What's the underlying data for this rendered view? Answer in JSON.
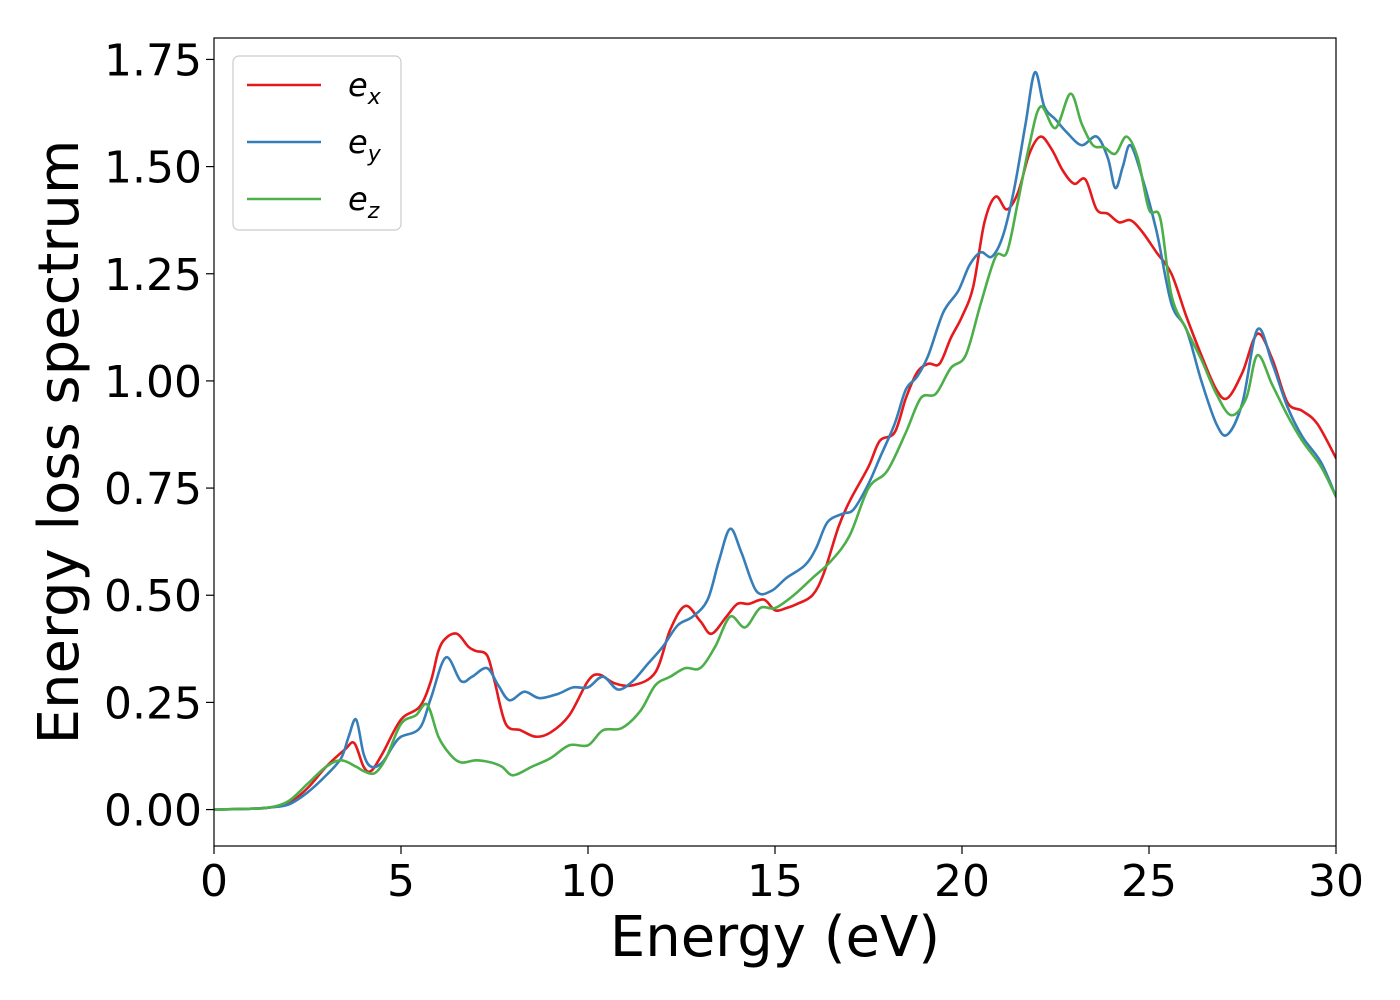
{
  "chart_data": {
    "type": "line",
    "xlabel": "Energy (eV)",
    "ylabel": "Energy loss spectrum",
    "xlim": [
      0,
      30
    ],
    "ylim": [
      -0.085,
      1.8
    ],
    "xticks": [
      0,
      5,
      10,
      15,
      20,
      25,
      30
    ],
    "xtick_labels": [
      "0",
      "5",
      "10",
      "15",
      "20",
      "25",
      "30"
    ],
    "yticks": [
      0.0,
      0.25,
      0.5,
      0.75,
      1.0,
      1.25,
      1.5,
      1.75
    ],
    "ytick_labels": [
      "0.00",
      "0.25",
      "0.50",
      "0.75",
      "1.00",
      "1.25",
      "1.50",
      "1.75"
    ],
    "grid": false,
    "legend_position": "top-left",
    "series": [
      {
        "name": "e_x",
        "legend_base": "e",
        "legend_sub": "x",
        "color": "#e41a1c",
        "points": [
          [
            0,
            0
          ],
          [
            1,
            0.002
          ],
          [
            1.5,
            0.005
          ],
          [
            2,
            0.015
          ],
          [
            2.5,
            0.05
          ],
          [
            3,
            0.1
          ],
          [
            3.5,
            0.14
          ],
          [
            3.75,
            0.155
          ],
          [
            4,
            0.1
          ],
          [
            4.2,
            0.09
          ],
          [
            4.5,
            0.13
          ],
          [
            5,
            0.21
          ],
          [
            5.5,
            0.24
          ],
          [
            5.8,
            0.3
          ],
          [
            6,
            0.37
          ],
          [
            6.2,
            0.4
          ],
          [
            6.5,
            0.41
          ],
          [
            6.8,
            0.38
          ],
          [
            7,
            0.37
          ],
          [
            7.3,
            0.36
          ],
          [
            7.5,
            0.3
          ],
          [
            7.8,
            0.2
          ],
          [
            8.2,
            0.185
          ],
          [
            8.6,
            0.17
          ],
          [
            9,
            0.18
          ],
          [
            9.5,
            0.22
          ],
          [
            10,
            0.3
          ],
          [
            10.3,
            0.315
          ],
          [
            10.7,
            0.295
          ],
          [
            11.2,
            0.29
          ],
          [
            11.8,
            0.32
          ],
          [
            12.2,
            0.42
          ],
          [
            12.6,
            0.475
          ],
          [
            13,
            0.44
          ],
          [
            13.3,
            0.41
          ],
          [
            13.7,
            0.45
          ],
          [
            14,
            0.48
          ],
          [
            14.3,
            0.48
          ],
          [
            14.7,
            0.49
          ],
          [
            15,
            0.465
          ],
          [
            15.3,
            0.47
          ],
          [
            15.6,
            0.48
          ],
          [
            16,
            0.5
          ],
          [
            16.3,
            0.55
          ],
          [
            16.7,
            0.66
          ],
          [
            17,
            0.72
          ],
          [
            17.5,
            0.8
          ],
          [
            17.8,
            0.86
          ],
          [
            18.2,
            0.88
          ],
          [
            18.5,
            0.96
          ],
          [
            18.8,
            1.02
          ],
          [
            19.1,
            1.04
          ],
          [
            19.4,
            1.04
          ],
          [
            19.7,
            1.1
          ],
          [
            20,
            1.15
          ],
          [
            20.3,
            1.22
          ],
          [
            20.6,
            1.37
          ],
          [
            20.9,
            1.43
          ],
          [
            21.2,
            1.4
          ],
          [
            21.5,
            1.44
          ],
          [
            21.8,
            1.53
          ],
          [
            22.1,
            1.57
          ],
          [
            22.4,
            1.54
          ],
          [
            22.7,
            1.49
          ],
          [
            23,
            1.46
          ],
          [
            23.3,
            1.47
          ],
          [
            23.6,
            1.4
          ],
          [
            23.9,
            1.39
          ],
          [
            24.2,
            1.37
          ],
          [
            24.5,
            1.375
          ],
          [
            24.8,
            1.35
          ],
          [
            25.2,
            1.3
          ],
          [
            25.6,
            1.25
          ],
          [
            26,
            1.15
          ],
          [
            26.4,
            1.06
          ],
          [
            26.8,
            0.98
          ],
          [
            27.1,
            0.96
          ],
          [
            27.5,
            1.02
          ],
          [
            27.9,
            1.11
          ],
          [
            28.3,
            1.05
          ],
          [
            28.7,
            0.95
          ],
          [
            29.1,
            0.93
          ],
          [
            29.5,
            0.9
          ],
          [
            30,
            0.82
          ]
        ]
      },
      {
        "name": "e_y",
        "legend_base": "e",
        "legend_sub": "y",
        "color": "#377eb8",
        "points": [
          [
            0,
            0
          ],
          [
            1,
            0.002
          ],
          [
            1.5,
            0.005
          ],
          [
            2,
            0.012
          ],
          [
            2.5,
            0.04
          ],
          [
            3,
            0.08
          ],
          [
            3.4,
            0.12
          ],
          [
            3.6,
            0.17
          ],
          [
            3.8,
            0.21
          ],
          [
            4,
            0.13
          ],
          [
            4.2,
            0.1
          ],
          [
            4.5,
            0.11
          ],
          [
            4.8,
            0.15
          ],
          [
            5,
            0.17
          ],
          [
            5.5,
            0.19
          ],
          [
            5.8,
            0.26
          ],
          [
            6.2,
            0.355
          ],
          [
            6.6,
            0.3
          ],
          [
            6.9,
            0.31
          ],
          [
            7.3,
            0.33
          ],
          [
            7.6,
            0.29
          ],
          [
            7.9,
            0.255
          ],
          [
            8.3,
            0.275
          ],
          [
            8.7,
            0.26
          ],
          [
            9.2,
            0.27
          ],
          [
            9.6,
            0.285
          ],
          [
            10,
            0.285
          ],
          [
            10.4,
            0.31
          ],
          [
            10.8,
            0.28
          ],
          [
            11.2,
            0.3
          ],
          [
            11.6,
            0.34
          ],
          [
            12,
            0.38
          ],
          [
            12.4,
            0.43
          ],
          [
            12.8,
            0.45
          ],
          [
            13.2,
            0.49
          ],
          [
            13.5,
            0.58
          ],
          [
            13.8,
            0.655
          ],
          [
            14.1,
            0.6
          ],
          [
            14.5,
            0.51
          ],
          [
            14.9,
            0.51
          ],
          [
            15.3,
            0.54
          ],
          [
            15.8,
            0.57
          ],
          [
            16.1,
            0.61
          ],
          [
            16.4,
            0.67
          ],
          [
            16.8,
            0.69
          ],
          [
            17.1,
            0.7
          ],
          [
            17.5,
            0.76
          ],
          [
            17.8,
            0.82
          ],
          [
            18.2,
            0.9
          ],
          [
            18.5,
            0.98
          ],
          [
            18.8,
            1.01
          ],
          [
            19.1,
            1.06
          ],
          [
            19.5,
            1.16
          ],
          [
            19.9,
            1.21
          ],
          [
            20.2,
            1.27
          ],
          [
            20.5,
            1.3
          ],
          [
            20.8,
            1.29
          ],
          [
            21.1,
            1.34
          ],
          [
            21.4,
            1.45
          ],
          [
            21.7,
            1.6
          ],
          [
            21.95,
            1.72
          ],
          [
            22.2,
            1.64
          ],
          [
            22.5,
            1.61
          ],
          [
            22.8,
            1.58
          ],
          [
            23.2,
            1.55
          ],
          [
            23.6,
            1.57
          ],
          [
            23.9,
            1.52
          ],
          [
            24.1,
            1.45
          ],
          [
            24.3,
            1.5
          ],
          [
            24.5,
            1.55
          ],
          [
            24.8,
            1.48
          ],
          [
            25.2,
            1.35
          ],
          [
            25.6,
            1.18
          ],
          [
            26,
            1.12
          ],
          [
            26.4,
            1.0
          ],
          [
            26.8,
            0.9
          ],
          [
            27.1,
            0.875
          ],
          [
            27.5,
            0.95
          ],
          [
            27.9,
            1.12
          ],
          [
            28.3,
            1.04
          ],
          [
            28.7,
            0.94
          ],
          [
            29.1,
            0.87
          ],
          [
            29.6,
            0.81
          ],
          [
            30,
            0.73
          ]
        ]
      },
      {
        "name": "e_z",
        "legend_base": "e",
        "legend_sub": "z",
        "color": "#4daf4a",
        "points": [
          [
            0,
            0
          ],
          [
            1,
            0.002
          ],
          [
            1.5,
            0.005
          ],
          [
            2,
            0.02
          ],
          [
            2.5,
            0.06
          ],
          [
            3,
            0.1
          ],
          [
            3.4,
            0.115
          ],
          [
            3.8,
            0.1
          ],
          [
            4,
            0.09
          ],
          [
            4.3,
            0.085
          ],
          [
            4.6,
            0.12
          ],
          [
            5,
            0.2
          ],
          [
            5.4,
            0.22
          ],
          [
            5.7,
            0.245
          ],
          [
            6,
            0.17
          ],
          [
            6.3,
            0.13
          ],
          [
            6.6,
            0.11
          ],
          [
            7,
            0.115
          ],
          [
            7.4,
            0.11
          ],
          [
            7.7,
            0.1
          ],
          [
            8,
            0.08
          ],
          [
            8.5,
            0.1
          ],
          [
            9,
            0.12
          ],
          [
            9.5,
            0.15
          ],
          [
            10,
            0.15
          ],
          [
            10.4,
            0.185
          ],
          [
            10.9,
            0.19
          ],
          [
            11.4,
            0.23
          ],
          [
            11.8,
            0.29
          ],
          [
            12.2,
            0.31
          ],
          [
            12.6,
            0.33
          ],
          [
            13,
            0.33
          ],
          [
            13.4,
            0.38
          ],
          [
            13.8,
            0.45
          ],
          [
            14.2,
            0.425
          ],
          [
            14.6,
            0.47
          ],
          [
            15,
            0.47
          ],
          [
            15.5,
            0.5
          ],
          [
            16,
            0.54
          ],
          [
            16.5,
            0.58
          ],
          [
            17,
            0.64
          ],
          [
            17.5,
            0.75
          ],
          [
            18,
            0.79
          ],
          [
            18.5,
            0.88
          ],
          [
            18.9,
            0.96
          ],
          [
            19.3,
            0.97
          ],
          [
            19.7,
            1.03
          ],
          [
            20.1,
            1.06
          ],
          [
            20.5,
            1.18
          ],
          [
            20.9,
            1.29
          ],
          [
            21.2,
            1.3
          ],
          [
            21.5,
            1.42
          ],
          [
            21.8,
            1.55
          ],
          [
            22.1,
            1.64
          ],
          [
            22.5,
            1.59
          ],
          [
            22.9,
            1.67
          ],
          [
            23.2,
            1.6
          ],
          [
            23.5,
            1.55
          ],
          [
            23.8,
            1.545
          ],
          [
            24.1,
            1.53
          ],
          [
            24.4,
            1.57
          ],
          [
            24.7,
            1.52
          ],
          [
            25,
            1.4
          ],
          [
            25.3,
            1.38
          ],
          [
            25.6,
            1.2
          ],
          [
            26,
            1.12
          ],
          [
            26.4,
            1.05
          ],
          [
            26.8,
            0.97
          ],
          [
            27.2,
            0.92
          ],
          [
            27.6,
            0.96
          ],
          [
            27.9,
            1.06
          ],
          [
            28.3,
            0.99
          ],
          [
            28.7,
            0.92
          ],
          [
            29.1,
            0.86
          ],
          [
            29.6,
            0.8
          ],
          [
            30,
            0.73
          ]
        ]
      }
    ]
  }
}
